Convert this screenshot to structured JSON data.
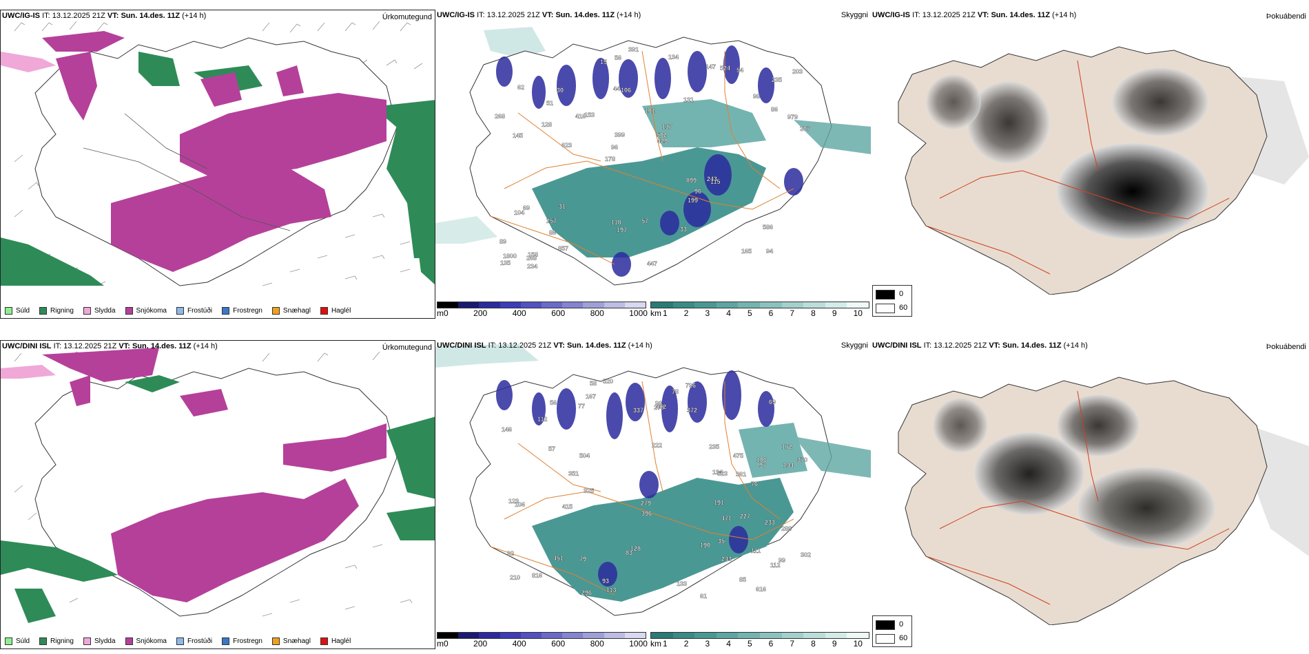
{
  "rows": [
    {
      "model": "UWC/IG-IS",
      "it_label": "IT:",
      "it_value": "13.12.2025 21Z",
      "vt_label": "VT:",
      "vt_value": "Sun. 14.des. 11Z",
      "lead": "(+14 h)",
      "precip_title": "Úrkomutegund",
      "cloud_title": "Skyggni",
      "fog_title": "Þokuábendi"
    },
    {
      "model": "UWC/DINI ISL",
      "it_label": "IT:",
      "it_value": "13.12.2025 21Z",
      "vt_label": "VT:",
      "vt_value": "Sun. 14.des. 11Z",
      "lead": "(+14 h)",
      "precip_title": "Úrkomutegund",
      "cloud_title": "Skyggni",
      "fog_title": "Þokuábendi"
    }
  ],
  "precip_legend": [
    {
      "label": "Súld",
      "color": "#90ee90"
    },
    {
      "label": "Rigning",
      "color": "#2e8b57"
    },
    {
      "label": "Slydda",
      "color": "#f0a8d8"
    },
    {
      "label": "Snjókoma",
      "color": "#b5409a"
    },
    {
      "label": "Frostúði",
      "color": "#8fb8e8"
    },
    {
      "label": "Frostregn",
      "color": "#3a78c8"
    },
    {
      "label": "Snæhagl",
      "color": "#f0a020"
    },
    {
      "label": "Haglél",
      "color": "#e01010"
    }
  ],
  "ceiling_scale": {
    "unit": "m",
    "ticks": [
      "0",
      "200",
      "400",
      "600",
      "800",
      "1000"
    ],
    "colors": [
      "#000000",
      "#1a1a6e",
      "#2b2b9e",
      "#3d3db8",
      "#5252c0",
      "#6a6ac8",
      "#8484d0",
      "#a0a0d8",
      "#bcbce4",
      "#d8d8f0"
    ]
  },
  "visibility_scale": {
    "unit": "km",
    "ticks": [
      "1",
      "2",
      "3",
      "4",
      "5",
      "6",
      "7",
      "8",
      "9",
      "10"
    ],
    "colors": [
      "#2a7a76",
      "#3a8a86",
      "#4a9894",
      "#5ea6a2",
      "#74b4b0",
      "#8cc2be",
      "#a4d0cc",
      "#bcdeda",
      "#d4ece8",
      "#eef8f6"
    ]
  },
  "fog_key": {
    "top": "0",
    "bottom": "60",
    "top_color": "#000000",
    "bottom_color": "#ffffff"
  },
  "ceiling_labels_row1": [
    "94",
    "145",
    "235",
    "178",
    "131",
    "158",
    "44",
    "101",
    "69",
    "153",
    "89",
    "86",
    "106",
    "117",
    "115",
    "62",
    "56",
    "207",
    "899",
    "86",
    "96",
    "118",
    "399",
    "30",
    "147",
    "31",
    "165",
    "586",
    "243",
    "447",
    "416",
    "128",
    "199",
    "857",
    "979",
    "502",
    "1800",
    "197",
    "429",
    "104",
    "98",
    "203",
    "96",
    "33",
    "257",
    "234",
    "135",
    "57",
    "54",
    "391",
    "623",
    "268",
    "51",
    "524",
    "268",
    "134",
    "15"
  ],
  "ceiling_labels_row2": [
    "111",
    "172",
    "99",
    "222",
    "210",
    "167",
    "106",
    "79",
    "69",
    "57",
    "144",
    "146",
    "76",
    "113",
    "92",
    "112",
    "112",
    "77",
    "128",
    "97",
    "123",
    "106",
    "133",
    "134",
    "93",
    "83",
    "78",
    "372",
    "235",
    "302",
    "415",
    "243",
    "296",
    "279",
    "233",
    "85",
    "523",
    "337",
    "616",
    "325",
    "227",
    "361",
    "270",
    "351",
    "288",
    "471",
    "816",
    "796",
    "504",
    "475",
    "451",
    "396",
    "402",
    "370",
    "190",
    "191",
    "58",
    "56",
    "61",
    "98",
    "520",
    "35"
  ]
}
